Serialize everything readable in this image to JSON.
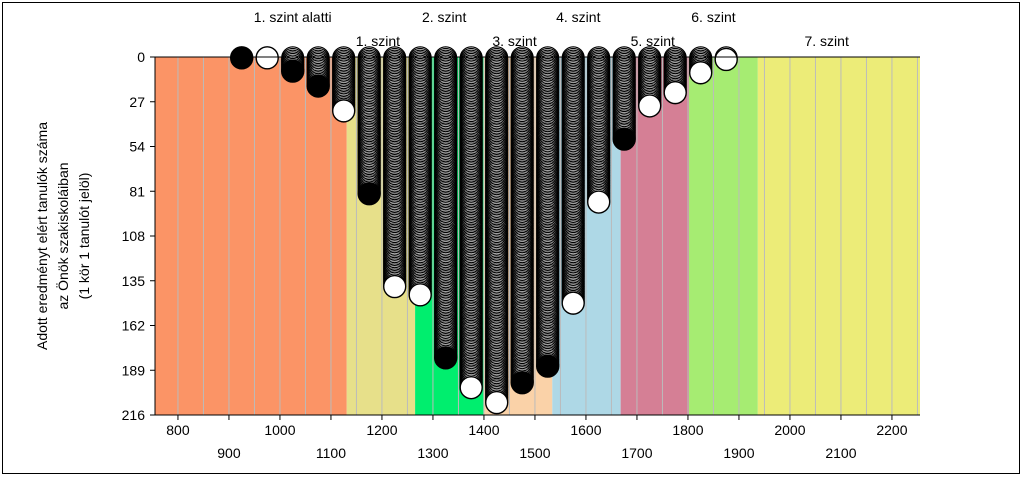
{
  "chart_data": {
    "type": "scatter",
    "title": "",
    "ylabel": [
      "Adott eredményt elért tanulók száma",
      "az Önök szakiskoláiban",
      "(1 kör 1 tanulót jelöl)"
    ],
    "xlabel": "",
    "xlim": [
      755,
      2255
    ],
    "ylim": [
      0,
      216
    ],
    "y_inverted": true,
    "y_ticks": [
      0,
      27,
      54,
      81,
      108,
      135,
      162,
      189,
      216
    ],
    "x_ticks_upper": [
      800,
      1000,
      1200,
      1400,
      1600,
      1800,
      2000,
      2200
    ],
    "x_ticks_lower": [
      900,
      1100,
      1300,
      1500,
      1700,
      1900,
      2100
    ],
    "grid": "vertical",
    "bands": [
      {
        "from": 755,
        "to": 1131,
        "color": "#fb9466"
      },
      {
        "from": 1131,
        "to": 1265,
        "color": "#e7e08a"
      },
      {
        "from": 1265,
        "to": 1399,
        "color": "#00ee6e"
      },
      {
        "from": 1399,
        "to": 1534,
        "color": "#fad2a8"
      },
      {
        "from": 1534,
        "to": 1668,
        "color": "#aed8e6"
      },
      {
        "from": 1668,
        "to": 1802,
        "color": "#d57f95"
      },
      {
        "from": 1802,
        "to": 1937,
        "color": "#a6ec72"
      },
      {
        "from": 1937,
        "to": 2255,
        "color": "#ecec78"
      }
    ],
    "level_labels_top": [
      {
        "text": "1. szint alatti",
        "x": 1025
      },
      {
        "text": "2. szint",
        "x": 1322
      },
      {
        "text": "4. szint",
        "x": 1585
      },
      {
        "text": "6. szint",
        "x": 1850
      }
    ],
    "level_labels_bottom": [
      {
        "text": "1. szint",
        "x": 1192
      },
      {
        "text": "3. szint",
        "x": 1460
      },
      {
        "text": "5. szint",
        "x": 1731
      },
      {
        "text": "7. szint",
        "x": 2072
      }
    ],
    "series": [
      {
        "columns_x": [
          925,
          975,
          1025,
          1075,
          1125,
          1175,
          1225,
          1275,
          1325,
          1375,
          1425,
          1475,
          1525,
          1575,
          1625,
          1675,
          1725,
          1775,
          1825,
          1875
        ],
        "counts": [
          1,
          1,
          9,
          18,
          33,
          83,
          139,
          144,
          182,
          200,
          209,
          197,
          187,
          149,
          88,
          50,
          30,
          22,
          10,
          2
        ],
        "last_marker": [
          "filled",
          "open",
          "filled",
          "filled",
          "open",
          "filled",
          "open",
          "open",
          "filled",
          "open",
          "open",
          "filled",
          "filled",
          "open",
          "open",
          "filled",
          "open",
          "open",
          "open",
          "open"
        ]
      }
    ]
  },
  "colors": {
    "marker_stroke": "#000000",
    "marker_fill_open": "#ffffff",
    "marker_fill_filled": "#000000",
    "gridline": "#bbbbbb"
  }
}
